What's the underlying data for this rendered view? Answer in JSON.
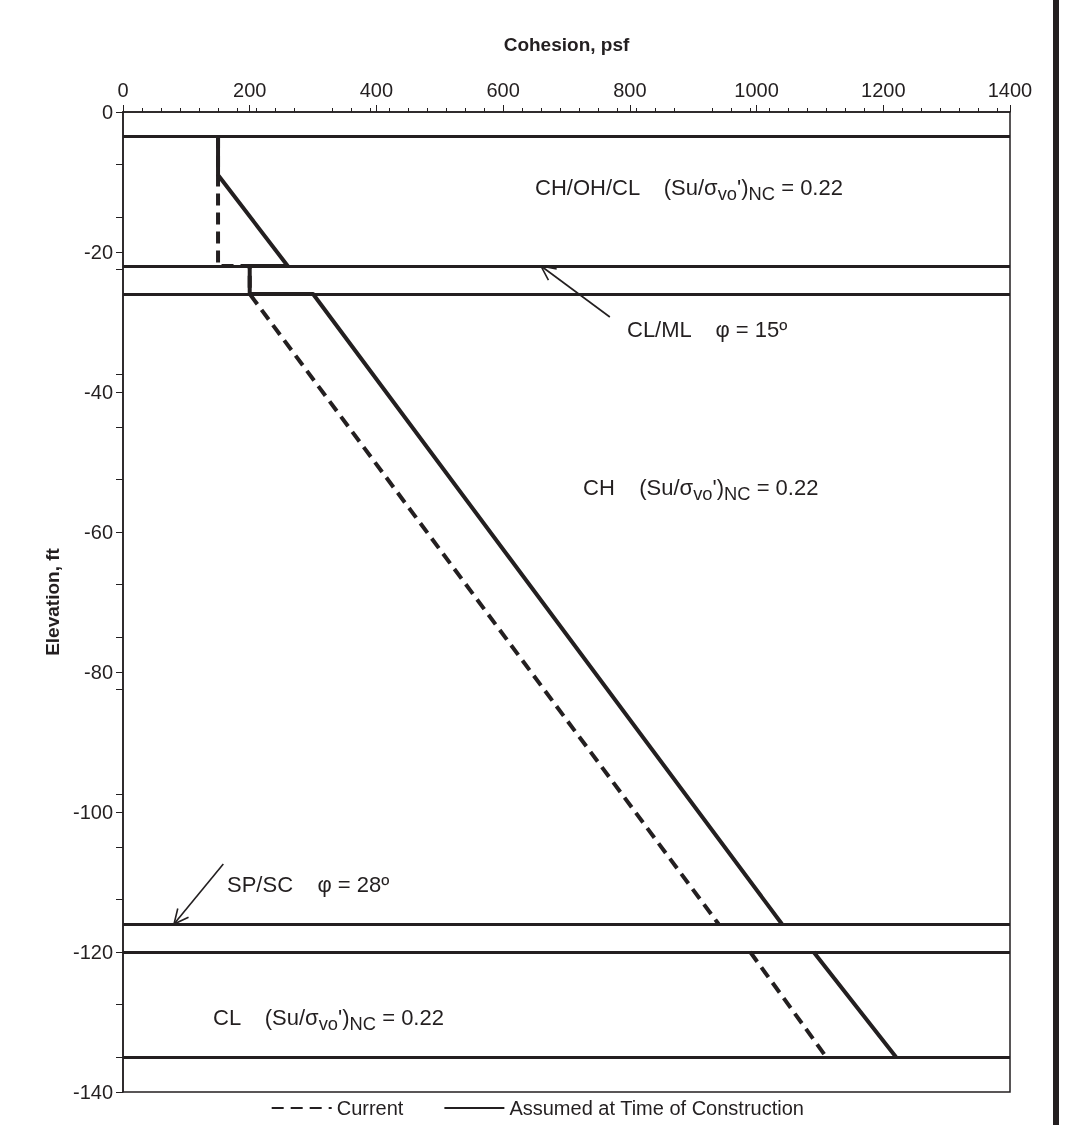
{
  "chart_data": {
    "type": "line",
    "xlabel": "Cohesion, psf",
    "ylabel": "Elevation, ft",
    "xlim": [
      0,
      1400
    ],
    "xticks": [
      0,
      200,
      400,
      600,
      800,
      1000,
      1200,
      1400
    ],
    "ylim": [
      -140,
      0
    ],
    "yticks": [
      -140,
      -120,
      -100,
      -80,
      -60,
      -40,
      -20,
      0
    ],
    "marker": "none",
    "legend": "bottom",
    "series": [
      {
        "name": "Current",
        "color": "#231f20",
        "line_style": "dashed",
        "x": [
          150,
          150,
          200,
          200,
          940,
          null,
          990,
          1110
        ],
        "values": [
          -3.5,
          -22,
          -22,
          -26,
          -116,
          null,
          -120,
          -135
        ]
      },
      {
        "name": "Assumed at Time of Construction",
        "color": "#231f20",
        "line_style": "solid",
        "x": [
          150,
          150,
          260,
          200,
          200,
          300,
          1040,
          null,
          1090,
          1220
        ],
        "values": [
          -3.5,
          -9,
          -22,
          -22,
          -26,
          -26,
          -116,
          null,
          -120,
          -135
        ]
      }
    ],
    "ref_lines": [
      {
        "axis": "y",
        "value": -3.5,
        "color": "#231f20"
      },
      {
        "axis": "y",
        "value": -22,
        "color": "#231f20"
      },
      {
        "axis": "y",
        "value": -26,
        "color": "#231f20"
      },
      {
        "axis": "y",
        "value": -116,
        "color": "#231f20"
      },
      {
        "axis": "y",
        "value": -120,
        "color": "#231f20"
      },
      {
        "axis": "y",
        "value": -135,
        "color": "#231f20"
      }
    ],
    "annotations": [
      "CH/OH/CL    (Su/σ$_{vo}$')$_{NC}$ = 0.22",
      {
        "text": "CL/ML    φ = 15º",
        "x": 660,
        "y": -22
      },
      "CH    (Su/σ$_{vo}$')$_{NC}$ = 0.22",
      {
        "text": "SP/SC    φ = 28º",
        "x": 80,
        "y": -116
      },
      "CL    (Su/σ$_{vo}$')$_{NC}$ = 0.22"
    ]
  }
}
